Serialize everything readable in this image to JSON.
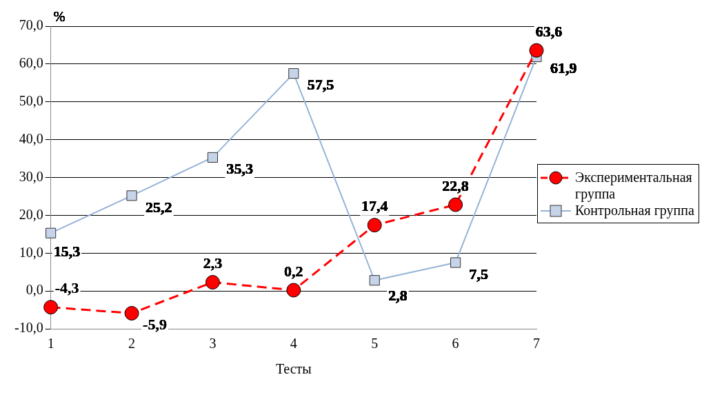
{
  "chart_data": {
    "type": "line",
    "xlabel": "Тесты",
    "ylabel": "%",
    "categories": [
      "1",
      "2",
      "3",
      "4",
      "5",
      "6",
      "7"
    ],
    "series": [
      {
        "name": "Экспериментальная группа",
        "color": "#ff0000",
        "values": [
          -4.3,
          -5.9,
          2.3,
          0.2,
          17.4,
          22.8,
          63.6
        ],
        "value_labels": [
          "-4,3",
          "-5,9",
          "2,3",
          "0,2",
          "17,4",
          "22,8",
          "63,6"
        ],
        "marker": "circle",
        "line_style": "dashed"
      },
      {
        "name": "Контрольная группа",
        "color": "#95b3d7",
        "values": [
          15.3,
          25.2,
          35.3,
          57.5,
          2.8,
          7.5,
          61.9
        ],
        "value_labels": [
          "15,3",
          "25,2",
          "35,3",
          "57,5",
          "2,8",
          "7,5",
          "61,9"
        ],
        "marker": "square",
        "line_style": "solid"
      }
    ],
    "ylim": [
      -10,
      70
    ],
    "yticks": [
      {
        "value": -10,
        "label": "-10,0"
      },
      {
        "value": 0,
        "label": "0,0"
      },
      {
        "value": 10,
        "label": "10,0"
      },
      {
        "value": 20,
        "label": "20,0"
      },
      {
        "value": 30,
        "label": "30,0"
      },
      {
        "value": 40,
        "label": "40,0"
      },
      {
        "value": 50,
        "label": "50,0"
      },
      {
        "value": 60,
        "label": "60,0"
      },
      {
        "value": 70,
        "label": "70,0"
      }
    ],
    "grid": "y",
    "legend": "right"
  }
}
